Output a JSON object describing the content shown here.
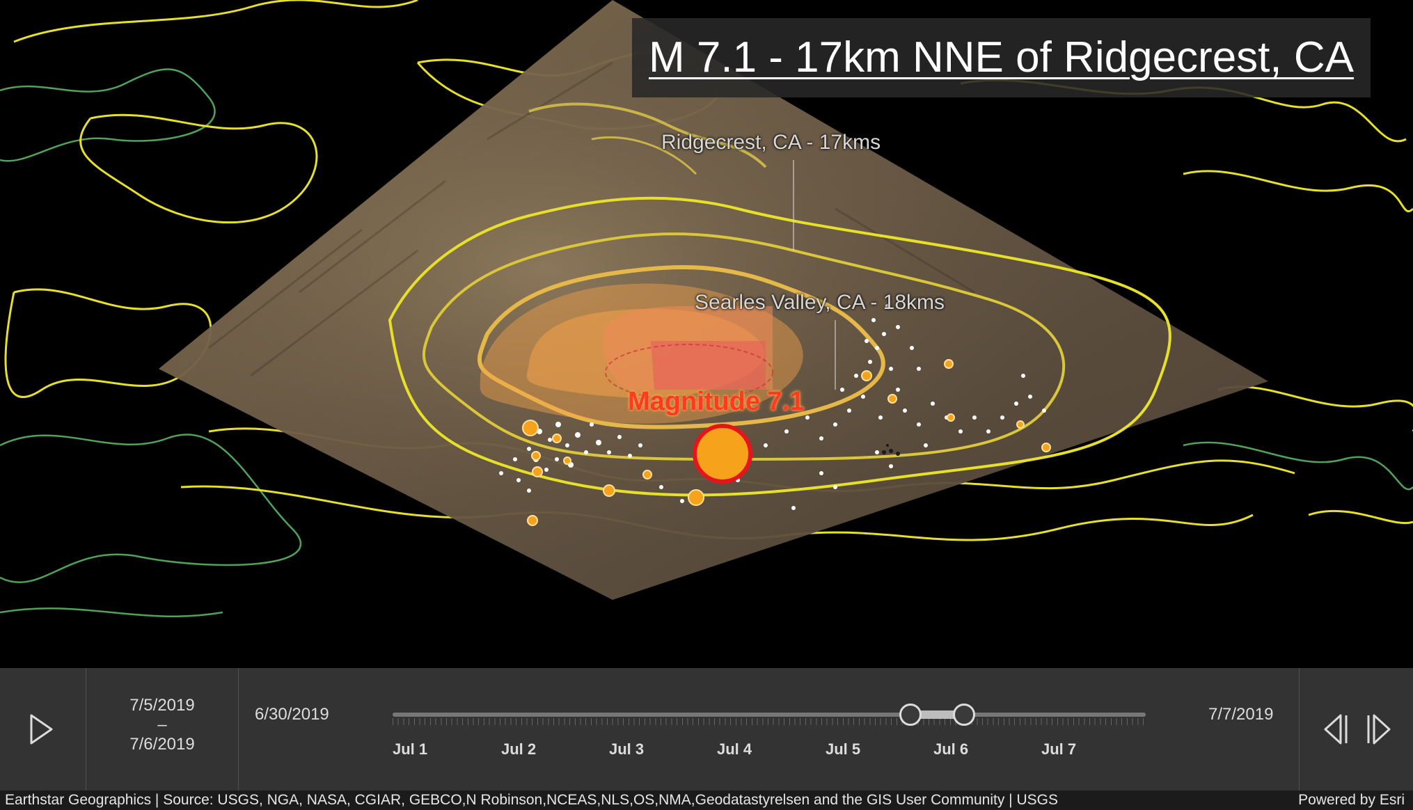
{
  "map": {
    "title": "M 7.1 - 17km NNE of Ridgecrest, CA",
    "labels": {
      "ridgecrest": "Ridgecrest, CA - 17kms",
      "searles": "Searles Valley, CA - 18kms",
      "magnitude": "Magnitude 7.1"
    }
  },
  "timeslider": {
    "range_start": "7/5/2019",
    "range_dash": "–",
    "range_end": "7/6/2019",
    "full_start": "6/30/2019",
    "full_end": "7/7/2019",
    "tick_labels": [
      "Jul 1",
      "Jul 2",
      "Jul 3",
      "Jul 4",
      "Jul 5",
      "Jul 6",
      "Jul 7"
    ],
    "icons": {
      "play": "play-icon",
      "previous": "previous-icon",
      "next": "next-icon"
    }
  },
  "attribution": {
    "sources": "Earthstar Geographics | Source: USGS, NGA, NASA, CGIAR, GEBCO,N Robinson,NCEAS,NLS,OS,NMA,Geodatastyrelsen and the GIS User Community | USGS",
    "powered_by": "Powered by Esri"
  },
  "colors": {
    "contour_yellow": "#e6e02a",
    "contour_green": "#5fbf6a",
    "intensity_orange": "#f4a24a",
    "epicenter_fill": "#f7a21b",
    "epicenter_ring": "#e8141c",
    "slider_bg": "#333333"
  }
}
